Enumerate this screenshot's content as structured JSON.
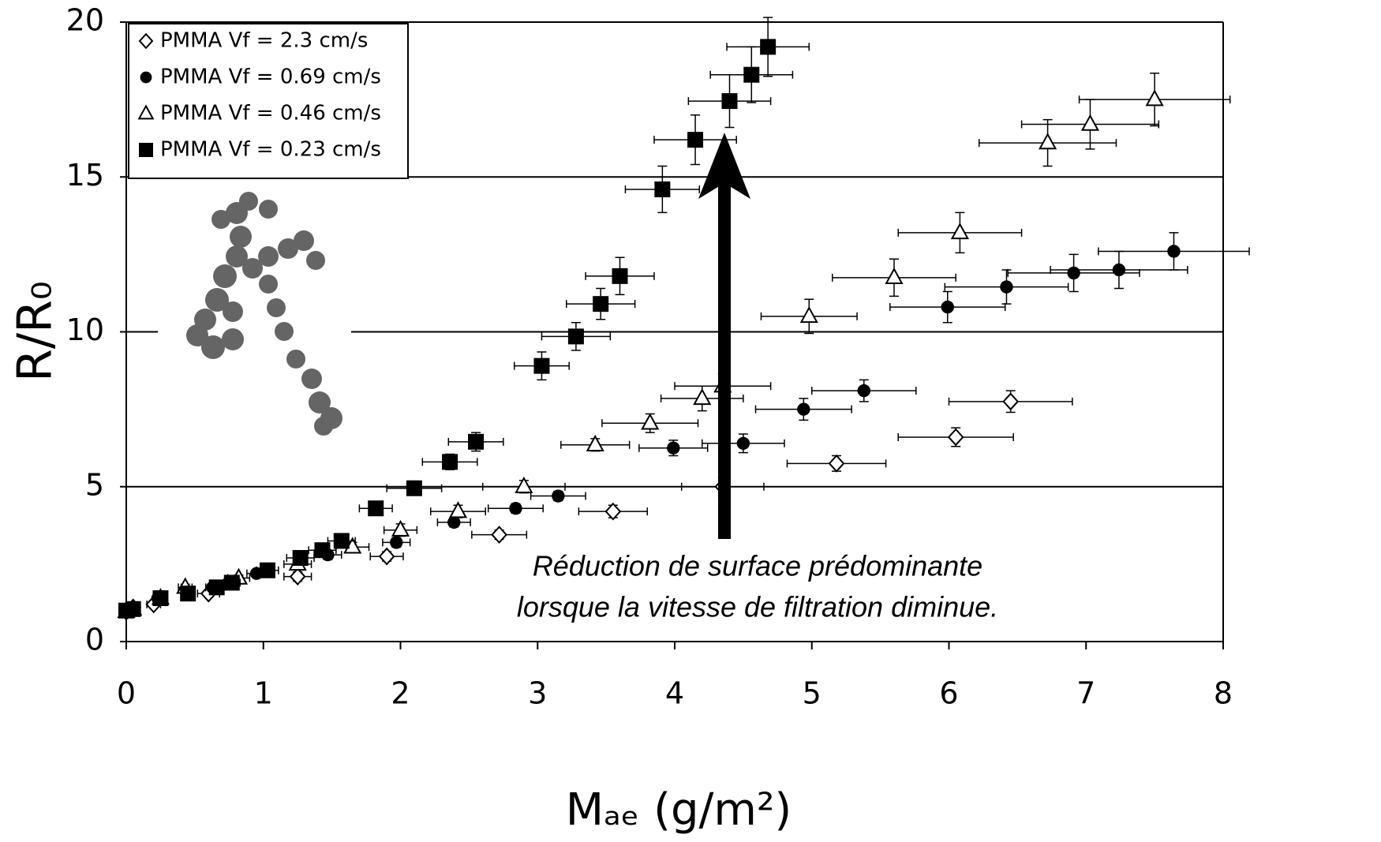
{
  "chart_data": {
    "type": "scatter",
    "xlabel": "Mₐₑ (g/m²)",
    "ylabel": "R/R₀",
    "annotation": [
      "Réduction de surface prédominante",
      "lorsque la vitesse de filtration diminue."
    ],
    "xlim": [
      0,
      8
    ],
    "xticks": [
      0,
      1,
      2,
      3,
      4,
      5,
      6,
      7,
      8
    ],
    "ylim": [
      0,
      20
    ],
    "yticks": [
      0,
      5,
      10,
      15,
      20
    ],
    "grid": true,
    "legend": "upper left",
    "series": [
      {
        "name": "PMMA Vf = 2.3 cm/s",
        "marker": "diamond",
        "filled": false,
        "color": "#000000",
        "x": [
          0,
          0.05,
          0.2,
          0.6,
          1.25,
          1.9,
          2.72,
          3.55,
          4.35,
          5.18,
          6.05,
          6.45
        ],
        "values": [
          0.97,
          1.1,
          1.2,
          1.55,
          2.1,
          2.75,
          3.45,
          4.2,
          5.0,
          5.75,
          6.6,
          7.75
        ],
        "xerr": [
          0.02,
          0.03,
          0.05,
          0.08,
          0.1,
          0.12,
          0.2,
          0.25,
          0.3,
          0.36,
          0.42,
          0.45
        ],
        "yerr": [
          0.05,
          0.05,
          0.1,
          0.1,
          0.15,
          0.15,
          0.15,
          0.2,
          0.3,
          0.25,
          0.3,
          0.35
        ]
      },
      {
        "name": "PMMA Vf = 0.69 cm/s",
        "marker": "circle",
        "filled": true,
        "color": "#000000",
        "x": [
          0,
          0.05,
          0.23,
          0.63,
          0.95,
          1.47,
          1.97,
          2.39,
          2.84,
          3.15,
          3.99,
          4.5,
          4.94,
          5.38,
          5.99,
          6.42,
          6.91,
          7.24,
          7.64
        ],
        "values": [
          0.97,
          1.1,
          1.4,
          1.75,
          2.2,
          2.8,
          3.2,
          3.85,
          4.3,
          4.7,
          6.25,
          6.4,
          7.5,
          8.1,
          10.8,
          11.45,
          11.9,
          12.0,
          12.6
        ],
        "xerr": [
          0.02,
          0.02,
          0.03,
          0.05,
          0.07,
          0.1,
          0.1,
          0.12,
          0.2,
          0.2,
          0.25,
          0.3,
          0.35,
          0.38,
          0.42,
          0.45,
          0.48,
          0.5,
          0.55
        ],
        "yerr": [
          0.05,
          0.05,
          0.1,
          0.1,
          0.1,
          0.15,
          0.15,
          0.15,
          0.15,
          0.15,
          0.25,
          0.3,
          0.35,
          0.35,
          0.5,
          0.55,
          0.6,
          0.6,
          0.6
        ]
      },
      {
        "name": "PMMA Vf = 0.46 cm/s",
        "marker": "triangle",
        "filled": false,
        "color": "#000000",
        "x": [
          0,
          0.05,
          0.25,
          0.43,
          0.82,
          1.25,
          1.65,
          2.0,
          2.42,
          2.9,
          3.42,
          3.82,
          4.2,
          4.35,
          4.98,
          5.6,
          6.08,
          6.72,
          7.03,
          7.5
        ],
        "values": [
          0.97,
          1.05,
          1.4,
          1.75,
          2.05,
          2.5,
          3.05,
          3.6,
          4.2,
          5.0,
          6.35,
          7.05,
          7.85,
          8.25,
          10.5,
          11.75,
          13.2,
          16.1,
          16.7,
          17.5
        ],
        "xerr": [
          0.02,
          0.02,
          0.03,
          0.05,
          0.08,
          0.1,
          0.12,
          0.12,
          0.2,
          0.3,
          0.25,
          0.35,
          0.3,
          0.35,
          0.35,
          0.45,
          0.45,
          0.5,
          0.5,
          0.55
        ],
        "yerr": [
          0.05,
          0.05,
          0.1,
          0.1,
          0.1,
          0.15,
          0.15,
          0.2,
          0.2,
          0.2,
          0.2,
          0.3,
          0.4,
          0.4,
          0.55,
          0.6,
          0.65,
          0.75,
          0.8,
          0.85
        ]
      },
      {
        "name": "PMMA Vf = 0.23 cm/s",
        "marker": "square",
        "filled": true,
        "color": "#000000",
        "x": [
          0,
          0.05,
          0.25,
          0.45,
          0.66,
          0.77,
          1.03,
          1.27,
          1.43,
          1.57,
          1.82,
          2.1,
          2.36,
          2.55,
          3.03,
          3.28,
          3.46,
          3.6,
          3.91,
          4.15,
          4.4,
          4.56,
          4.68
        ],
        "values": [
          1.0,
          1.05,
          1.4,
          1.55,
          1.75,
          1.9,
          2.3,
          2.7,
          2.95,
          3.25,
          4.3,
          4.95,
          5.8,
          6.45,
          8.9,
          9.85,
          10.9,
          11.8,
          14.6,
          16.2,
          17.45,
          18.3,
          19.2
        ],
        "xerr": [
          0.02,
          0.02,
          0.03,
          0.04,
          0.05,
          0.06,
          0.08,
          0.1,
          0.1,
          0.1,
          0.12,
          0.2,
          0.2,
          0.2,
          0.2,
          0.25,
          0.25,
          0.25,
          0.27,
          0.3,
          0.3,
          0.3,
          0.3
        ],
        "yerr": [
          0.05,
          0.05,
          0.1,
          0.1,
          0.1,
          0.1,
          0.1,
          0.15,
          0.15,
          0.15,
          0.2,
          0.2,
          0.25,
          0.3,
          0.45,
          0.45,
          0.5,
          0.6,
          0.75,
          0.8,
          0.85,
          0.9,
          0.95
        ]
      }
    ]
  }
}
